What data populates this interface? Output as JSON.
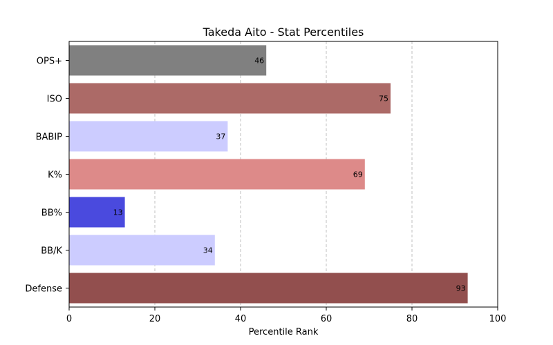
{
  "chart_data": {
    "type": "bar",
    "orientation": "horizontal",
    "title": "Takeda Aito - Stat Percentiles",
    "xlabel": "Percentile Rank",
    "ylabel": "",
    "xlim": [
      0,
      100
    ],
    "xticks": [
      0,
      20,
      40,
      60,
      80,
      100
    ],
    "grid": "x-dashed",
    "categories": [
      "OPS+",
      "ISO",
      "BABIP",
      "K%",
      "BB%",
      "BB/K",
      "Defense"
    ],
    "values": [
      46,
      75,
      37,
      69,
      13,
      34,
      93
    ],
    "colors": [
      "#808080",
      "#ac6a67",
      "#ccccff",
      "#dd8a89",
      "#4a4ade",
      "#ccccff",
      "#924f4e"
    ]
  }
}
